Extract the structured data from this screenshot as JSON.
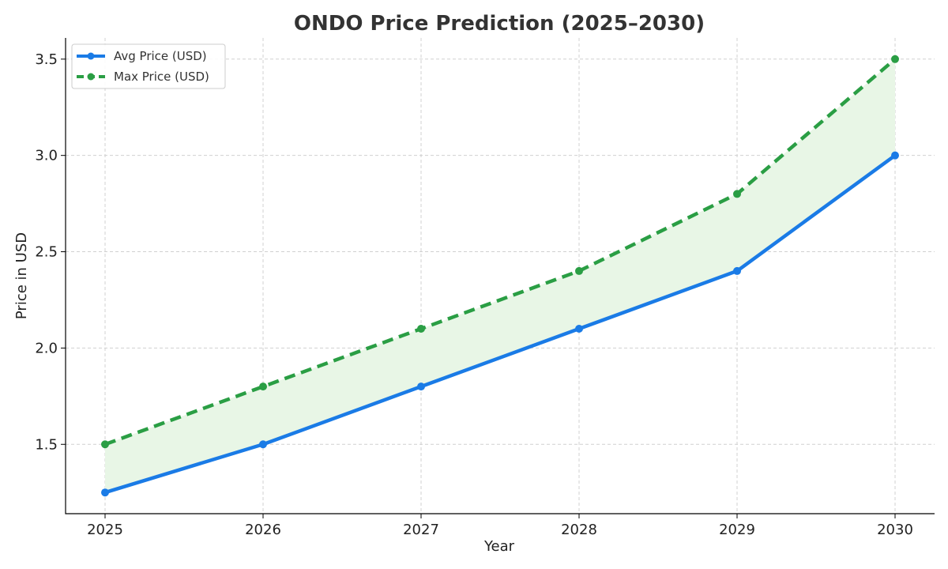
{
  "chart_data": {
    "type": "line",
    "title": "ONDO Price Prediction (2025–2030)",
    "xlabel": "Year",
    "ylabel": "Price in USD",
    "x": [
      2025,
      2026,
      2027,
      2028,
      2029,
      2030
    ],
    "xlim": [
      2024.75,
      2030.25
    ],
    "ylim": [
      1.14,
      3.61
    ],
    "yticks": [
      1.5,
      2.0,
      2.5,
      3.0,
      3.5
    ],
    "ytick_labels": [
      "1.5",
      "2.0",
      "2.5",
      "3.0",
      "3.5"
    ],
    "xtick_labels": [
      "2025",
      "2026",
      "2027",
      "2028",
      "2029",
      "2030"
    ],
    "grid": true,
    "legend_position": "top-left",
    "fill_between": {
      "from_series": 0,
      "to_series": 1,
      "color": "#e8f6e6"
    },
    "series": [
      {
        "name": "Avg Price (USD)",
        "values": [
          1.25,
          1.5,
          1.8,
          2.1,
          2.4,
          3.0
        ],
        "color": "#1a7be6",
        "style": "solid",
        "marker": "circle"
      },
      {
        "name": "Max Price (USD)",
        "values": [
          1.5,
          1.8,
          2.1,
          2.4,
          2.8,
          3.5
        ],
        "color": "#2a9e44",
        "style": "dashed",
        "marker": "circle"
      }
    ]
  }
}
